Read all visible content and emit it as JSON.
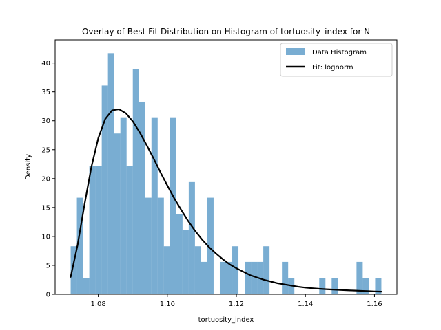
{
  "chart_data": {
    "type": "bar",
    "title": "Overlay of Best Fit Distribution on Histogram of tortuosity_index for N",
    "xlabel": "tortuosity_index",
    "ylabel": "Density",
    "xlim": [
      1.0675,
      1.1665
    ],
    "ylim": [
      0,
      44
    ],
    "xticks": [
      1.08,
      1.1,
      1.12,
      1.14,
      1.16
    ],
    "xtick_labels": [
      "1.08",
      "1.10",
      "1.12",
      "1.14",
      "1.16"
    ],
    "yticks": [
      0,
      5,
      10,
      15,
      20,
      25,
      30,
      35,
      40
    ],
    "ytick_labels": [
      "0",
      "5",
      "10",
      "15",
      "20",
      "25",
      "30",
      "35",
      "40"
    ],
    "bins": {
      "start": 1.072,
      "width": 0.0018
    },
    "histogram_values": [
      8.3,
      16.7,
      2.8,
      22.2,
      22.2,
      36.1,
      41.7,
      27.8,
      30.6,
      22.2,
      38.9,
      33.3,
      16.7,
      30.6,
      16.7,
      8.3,
      30.6,
      13.9,
      11.1,
      19.4,
      8.3,
      5.6,
      16.7,
      0,
      5.6,
      5.6,
      8.3,
      0,
      5.6,
      5.6,
      5.6,
      8.3,
      0,
      0,
      5.6,
      2.8,
      0,
      0,
      0,
      0,
      2.8,
      0,
      2.8,
      0,
      0,
      0,
      5.6,
      2.8,
      0,
      2.8
    ],
    "fit_curve": {
      "x": [
        1.072,
        1.074,
        1.076,
        1.078,
        1.08,
        1.082,
        1.084,
        1.086,
        1.088,
        1.09,
        1.092,
        1.094,
        1.096,
        1.098,
        1.1,
        1.102,
        1.104,
        1.106,
        1.108,
        1.11,
        1.112,
        1.114,
        1.116,
        1.118,
        1.12,
        1.122,
        1.124,
        1.126,
        1.128,
        1.13,
        1.132,
        1.134,
        1.136,
        1.138,
        1.14,
        1.142,
        1.144,
        1.146,
        1.148,
        1.15,
        1.152,
        1.154,
        1.156,
        1.158,
        1.16,
        1.162
      ],
      "y": [
        3.0,
        8.5,
        15.5,
        22.0,
        27.0,
        30.3,
        31.8,
        32.0,
        31.3,
        29.9,
        28.0,
        25.8,
        23.5,
        21.1,
        18.8,
        16.6,
        14.6,
        12.7,
        11.0,
        9.5,
        8.2,
        7.1,
        6.1,
        5.2,
        4.5,
        3.9,
        3.3,
        2.9,
        2.5,
        2.2,
        1.9,
        1.7,
        1.5,
        1.3,
        1.15,
        1.05,
        0.95,
        0.88,
        0.82,
        0.76,
        0.7,
        0.65,
        0.6,
        0.55,
        0.5,
        0.46
      ]
    },
    "series": [
      {
        "name": "Data Histogram",
        "color": "#1f77b4",
        "alpha": 0.6
      },
      {
        "name": "Fit: lognorm",
        "color": "#000000"
      }
    ],
    "legend_position": "top-right",
    "grid": false
  }
}
